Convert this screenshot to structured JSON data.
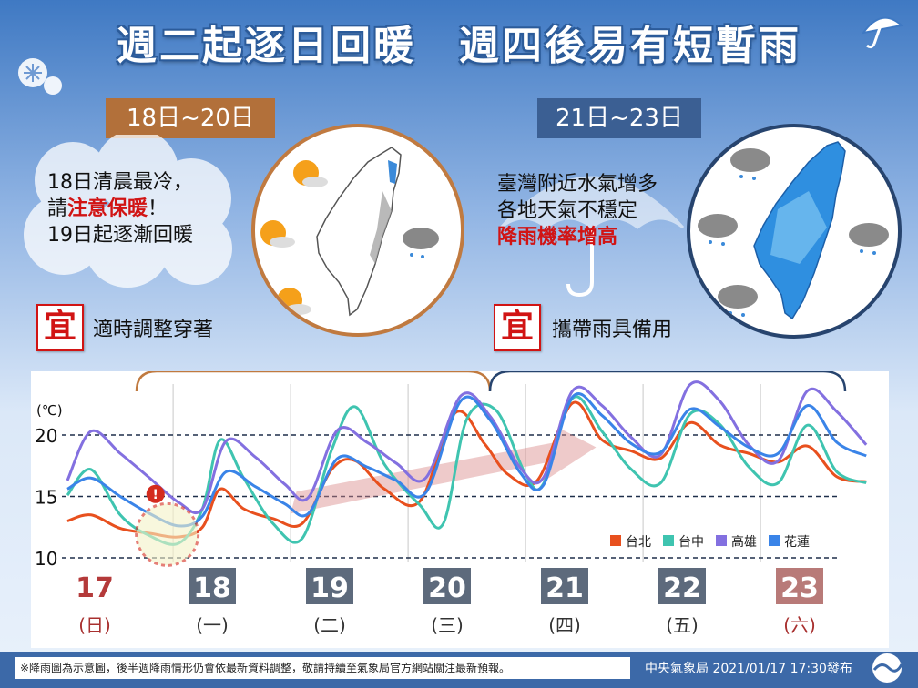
{
  "header": {
    "title": "週二起逐日回暖　週四後易有短暫雨"
  },
  "left_panel": {
    "date_range": "18日~20日",
    "lines": [
      "18日清晨最冷，",
      "請",
      "注意保暖",
      "！",
      "19日起逐漸回暖"
    ],
    "yi_char": "宜",
    "tip": "適時調整穿著"
  },
  "right_panel": {
    "date_range": "21日~23日",
    "lines": [
      "臺灣附近水氣增多",
      "各地天氣不穩定",
      "降雨機率增高"
    ],
    "yi_char": "宜",
    "tip": "攜帶雨具備用"
  },
  "chart_data": {
    "type": "line",
    "ylabel": "(℃)",
    "yticks": [
      10,
      15,
      20
    ],
    "ylim": [
      10,
      22.5
    ],
    "x": [
      17,
      17.5,
      18,
      18.5,
      19,
      19.5,
      20,
      20.5,
      21,
      21.5,
      22,
      22.5,
      23,
      23.5
    ],
    "days": [
      {
        "num": "17",
        "weekday": "(日)",
        "color": "#b43a3a",
        "box": false
      },
      {
        "num": "18",
        "weekday": "(一)",
        "color": "#5d6a7c",
        "box": true
      },
      {
        "num": "19",
        "weekday": "(二)",
        "color": "#5d6a7c",
        "box": true
      },
      {
        "num": "20",
        "weekday": "(三)",
        "color": "#5d6a7c",
        "box": true
      },
      {
        "num": "21",
        "weekday": "(四)",
        "color": "#5d6a7c",
        "box": true
      },
      {
        "num": "22",
        "weekday": "(五)",
        "color": "#5d6a7c",
        "box": true
      },
      {
        "num": "23",
        "weekday": "(六)",
        "color": "#b87a78",
        "box": true
      }
    ],
    "series": [
      {
        "name": "台北",
        "color": "#e8501e",
        "values": [
          [
            17.0,
            13.0
          ],
          [
            17.2,
            13.5
          ],
          [
            17.45,
            12.4
          ],
          [
            17.7,
            12.0
          ],
          [
            17.95,
            11.7
          ],
          [
            18.15,
            12.5
          ],
          [
            18.3,
            15.6
          ],
          [
            18.5,
            14.0
          ],
          [
            18.75,
            13.2
          ],
          [
            19.0,
            12.8
          ],
          [
            19.25,
            17.2
          ],
          [
            19.45,
            17.9
          ],
          [
            19.7,
            15.6
          ],
          [
            20.0,
            14.6
          ],
          [
            20.3,
            21.8
          ],
          [
            20.55,
            19.3
          ],
          [
            20.75,
            16.8
          ],
          [
            21.0,
            16.3
          ],
          [
            21.3,
            22.6
          ],
          [
            21.55,
            19.6
          ],
          [
            21.8,
            18.7
          ],
          [
            22.05,
            18.1
          ],
          [
            22.3,
            21.0
          ],
          [
            22.55,
            19.2
          ],
          [
            22.8,
            18.5
          ],
          [
            23.05,
            17.8
          ],
          [
            23.3,
            19.1
          ],
          [
            23.55,
            16.6
          ],
          [
            23.8,
            16.2
          ]
        ]
      },
      {
        "name": "台中",
        "color": "#3fc4b0",
        "values": [
          [
            17.0,
            15.1
          ],
          [
            17.2,
            17.2
          ],
          [
            17.45,
            13.5
          ],
          [
            17.7,
            11.8
          ],
          [
            17.95,
            11.2
          ],
          [
            18.15,
            14.0
          ],
          [
            18.3,
            19.6
          ],
          [
            18.5,
            16.5
          ],
          [
            18.75,
            12.8
          ],
          [
            19.0,
            11.6
          ],
          [
            19.25,
            18.8
          ],
          [
            19.45,
            22.3
          ],
          [
            19.7,
            17.6
          ],
          [
            20.0,
            14.3
          ],
          [
            20.2,
            12.8
          ],
          [
            20.4,
            21.3
          ],
          [
            20.65,
            22.0
          ],
          [
            20.9,
            16.8
          ],
          [
            21.05,
            16.0
          ],
          [
            21.3,
            23.0
          ],
          [
            21.55,
            20.3
          ],
          [
            21.8,
            17.2
          ],
          [
            22.05,
            16.1
          ],
          [
            22.3,
            21.7
          ],
          [
            22.55,
            20.9
          ],
          [
            22.8,
            17.4
          ],
          [
            23.05,
            16.1
          ],
          [
            23.3,
            20.8
          ],
          [
            23.55,
            17.0
          ],
          [
            23.8,
            16.1
          ]
        ]
      },
      {
        "name": "高雄",
        "color": "#8370e0",
        "values": [
          [
            17.0,
            16.3
          ],
          [
            17.2,
            20.3
          ],
          [
            17.45,
            18.5
          ],
          [
            17.7,
            16.5
          ],
          [
            17.95,
            14.5
          ],
          [
            18.15,
            14.0
          ],
          [
            18.35,
            19.5
          ],
          [
            18.6,
            18.2
          ],
          [
            18.85,
            16.0
          ],
          [
            19.05,
            14.9
          ],
          [
            19.3,
            20.4
          ],
          [
            19.55,
            19.4
          ],
          [
            19.8,
            17.7
          ],
          [
            20.05,
            16.5
          ],
          [
            20.35,
            23.2
          ],
          [
            20.6,
            21.5
          ],
          [
            20.85,
            17.4
          ],
          [
            21.05,
            16.5
          ],
          [
            21.3,
            23.6
          ],
          [
            21.55,
            22.4
          ],
          [
            21.8,
            19.8
          ],
          [
            22.05,
            18.4
          ],
          [
            22.3,
            24.1
          ],
          [
            22.55,
            22.8
          ],
          [
            22.8,
            19.2
          ],
          [
            23.05,
            17.9
          ],
          [
            23.3,
            23.6
          ],
          [
            23.55,
            21.9
          ],
          [
            23.8,
            19.2
          ]
        ]
      },
      {
        "name": "花蓮",
        "color": "#3a84e8",
        "values": [
          [
            17.0,
            15.6
          ],
          [
            17.2,
            16.5
          ],
          [
            17.45,
            15.0
          ],
          [
            17.7,
            13.6
          ],
          [
            17.95,
            12.6
          ],
          [
            18.15,
            13.4
          ],
          [
            18.35,
            17.0
          ],
          [
            18.6,
            15.8
          ],
          [
            18.85,
            14.4
          ],
          [
            19.05,
            13.6
          ],
          [
            19.3,
            18.1
          ],
          [
            19.55,
            17.4
          ],
          [
            19.8,
            16.3
          ],
          [
            20.05,
            15.3
          ],
          [
            20.35,
            22.8
          ],
          [
            20.6,
            21.2
          ],
          [
            20.85,
            17.0
          ],
          [
            21.05,
            15.9
          ],
          [
            21.3,
            23.1
          ],
          [
            21.55,
            21.6
          ],
          [
            21.8,
            19.3
          ],
          [
            22.05,
            18.6
          ],
          [
            22.3,
            22.1
          ],
          [
            22.55,
            20.7
          ],
          [
            22.8,
            19.0
          ],
          [
            23.05,
            18.5
          ],
          [
            23.3,
            22.4
          ],
          [
            23.55,
            19.4
          ],
          [
            23.8,
            18.3
          ]
        ]
      }
    ]
  },
  "footer": {
    "note": "※降雨圖為示意圖，後半週降雨情形仍會依最新資料調整，敬請持續至氣象局官方網站關注最新預報。",
    "source": "中央氣象局 2021/01/17 17:30發布"
  },
  "colors": {
    "accent_left": "#b2703a",
    "accent_right": "#3b5f93",
    "red": "#d11414"
  }
}
